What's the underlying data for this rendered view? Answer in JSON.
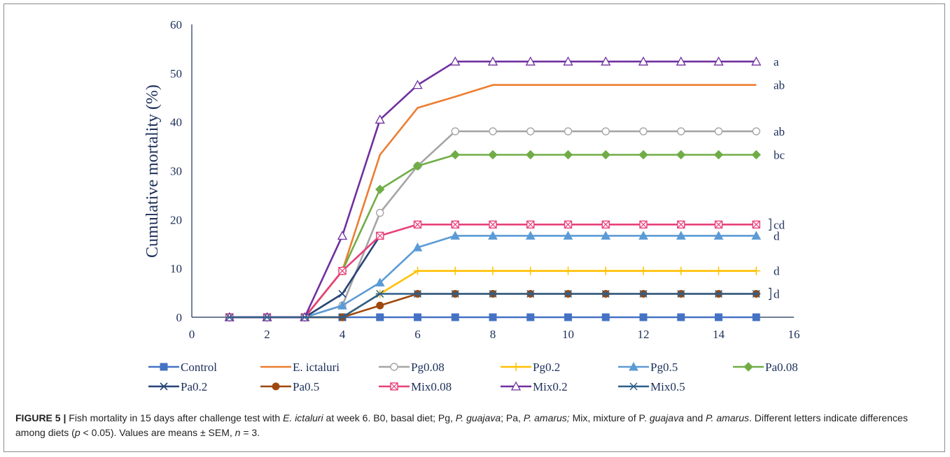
{
  "chart_data": {
    "type": "line",
    "title": "",
    "xlabel": "",
    "ylabel": "Cumulative mortality (%)",
    "xlim": [
      0,
      16
    ],
    "ylim": [
      0,
      60
    ],
    "xticks": [
      0,
      2,
      4,
      6,
      8,
      10,
      12,
      14,
      16
    ],
    "yticks": [
      0,
      10,
      20,
      30,
      40,
      50,
      60
    ],
    "grid": false,
    "legend_position": "bottom",
    "series": [
      {
        "name": "Control",
        "color": "#4472c4",
        "marker": "square-filled",
        "x": [
          1,
          2,
          3,
          4,
          5,
          6,
          7,
          8,
          9,
          10,
          11,
          12,
          13,
          14,
          15
        ],
        "values": [
          0,
          0,
          0,
          0,
          0,
          0,
          0,
          0,
          0,
          0,
          0,
          0,
          0,
          0,
          0
        ]
      },
      {
        "name": "E. ictaluri",
        "color": "#ed7d31",
        "marker": "none",
        "x": [
          1,
          2,
          3,
          4,
          5,
          6,
          7,
          8,
          9,
          10,
          11,
          12,
          13,
          14,
          15
        ],
        "values": [
          0,
          0,
          0,
          9.5,
          33.3,
          42.9,
          45.2,
          47.6,
          47.6,
          47.6,
          47.6,
          47.6,
          47.6,
          47.6,
          47.6
        ]
      },
      {
        "name": "Pg0.08",
        "color": "#a5a5a5",
        "marker": "circle-open",
        "x": [
          1,
          2,
          3,
          4,
          5,
          6,
          7,
          8,
          9,
          10,
          11,
          12,
          13,
          14,
          15
        ],
        "values": [
          0,
          0,
          0,
          2.4,
          21.4,
          31,
          38.1,
          38.1,
          38.1,
          38.1,
          38.1,
          38.1,
          38.1,
          38.1,
          38.1
        ]
      },
      {
        "name": "Pg0.2",
        "color": "#ffc000",
        "marker": "plus",
        "x": [
          1,
          2,
          3,
          4,
          5,
          6,
          7,
          8,
          9,
          10,
          11,
          12,
          13,
          14,
          15
        ],
        "values": [
          0,
          0,
          0,
          0,
          4.8,
          9.5,
          9.5,
          9.5,
          9.5,
          9.5,
          9.5,
          9.5,
          9.5,
          9.5,
          9.5
        ]
      },
      {
        "name": "Pg0.5",
        "color": "#5b9bd5",
        "marker": "triangle-filled",
        "x": [
          1,
          2,
          3,
          4,
          5,
          6,
          7,
          8,
          9,
          10,
          11,
          12,
          13,
          14,
          15
        ],
        "values": [
          0,
          0,
          0,
          2.4,
          7.1,
          14.3,
          16.7,
          16.7,
          16.7,
          16.7,
          16.7,
          16.7,
          16.7,
          16.7,
          16.7
        ]
      },
      {
        "name": "Pa0.08",
        "color": "#70ad47",
        "marker": "diamond-filled",
        "x": [
          1,
          2,
          3,
          4,
          5,
          6,
          7,
          8,
          9,
          10,
          11,
          12,
          13,
          14,
          15
        ],
        "values": [
          0,
          0,
          0,
          9.5,
          26.2,
          31,
          33.3,
          33.3,
          33.3,
          33.3,
          33.3,
          33.3,
          33.3,
          33.3,
          33.3
        ]
      },
      {
        "name": "Pa0.2",
        "color": "#264478",
        "marker": "x",
        "x": [
          1,
          2,
          3,
          4,
          5
        ],
        "values": [
          0,
          0,
          0,
          4.8,
          16.7
        ]
      },
      {
        "name": "Pa0.5",
        "color": "#9e480e",
        "marker": "circle-filled",
        "x": [
          1,
          2,
          3,
          4,
          5,
          6,
          7,
          8,
          9,
          10,
          11,
          12,
          13,
          14,
          15
        ],
        "values": [
          0,
          0,
          0,
          0,
          2.4,
          4.8,
          4.8,
          4.8,
          4.8,
          4.8,
          4.8,
          4.8,
          4.8,
          4.8,
          4.8
        ]
      },
      {
        "name": "Mix0.08",
        "color": "#e8407a",
        "marker": "square-crossed",
        "x": [
          1,
          2,
          3,
          4,
          5,
          6,
          7,
          8,
          9,
          10,
          11,
          12,
          13,
          14,
          15
        ],
        "values": [
          0,
          0,
          0,
          9.5,
          16.7,
          19,
          19,
          19,
          19,
          19,
          19,
          19,
          19,
          19,
          19
        ]
      },
      {
        "name": "Mix0.2",
        "color": "#7030a0",
        "marker": "triangle-open",
        "x": [
          1,
          2,
          3,
          4,
          5,
          6,
          7,
          8,
          9,
          10,
          11,
          12,
          13,
          14,
          15
        ],
        "values": [
          0,
          0,
          0,
          16.7,
          40.5,
          47.6,
          52.4,
          52.4,
          52.4,
          52.4,
          52.4,
          52.4,
          52.4,
          52.4,
          52.4
        ]
      },
      {
        "name": "Mix0.5",
        "color": "#2e5f8a",
        "marker": "asterisk",
        "x": [
          1,
          2,
          3,
          4,
          5,
          6,
          7,
          8,
          9,
          10,
          11,
          12,
          13,
          14,
          15
        ],
        "values": [
          0,
          0,
          0,
          0,
          4.8,
          4.8,
          4.8,
          4.8,
          4.8,
          4.8,
          4.8,
          4.8,
          4.8,
          4.8,
          4.8
        ]
      }
    ],
    "annotations": [
      {
        "text": "a",
        "y": 52.4,
        "bracket": false
      },
      {
        "text": "ab",
        "y": 47.6,
        "bracket": false
      },
      {
        "text": "ab",
        "y": 38.1,
        "bracket": false
      },
      {
        "text": "bc",
        "y": 33.3,
        "bracket": false
      },
      {
        "text": "cd",
        "y": 19,
        "bracket": true
      },
      {
        "text": "d",
        "y": 16.7,
        "bracket": false
      },
      {
        "text": "d",
        "y": 9.5,
        "bracket": false
      },
      {
        "text": "d",
        "y": 4.8,
        "bracket": true
      }
    ]
  },
  "caption": {
    "label": "FIGURE 5 |",
    "part1": " Fish mortality in 15 days after challenge test with ",
    "pathogen": "E. ictaluri",
    "part2": " at week 6. B0, basal diet; Pg, ",
    "pg_species": "P. guajava",
    "part3": "; Pa, ",
    "pa_species": "P. amarus;",
    "part4": " Mix, mixture of P. ",
    "pg_epithet": "guajava",
    "part5": " and ",
    "pa_species2": "P. amarus",
    "part6": ". Different letters indicate differences among diets (",
    "p_symbol": "p",
    "part7": " < 0.05). Values are means ± SEM, ",
    "n_symbol": "n",
    "part8": " = 3."
  }
}
